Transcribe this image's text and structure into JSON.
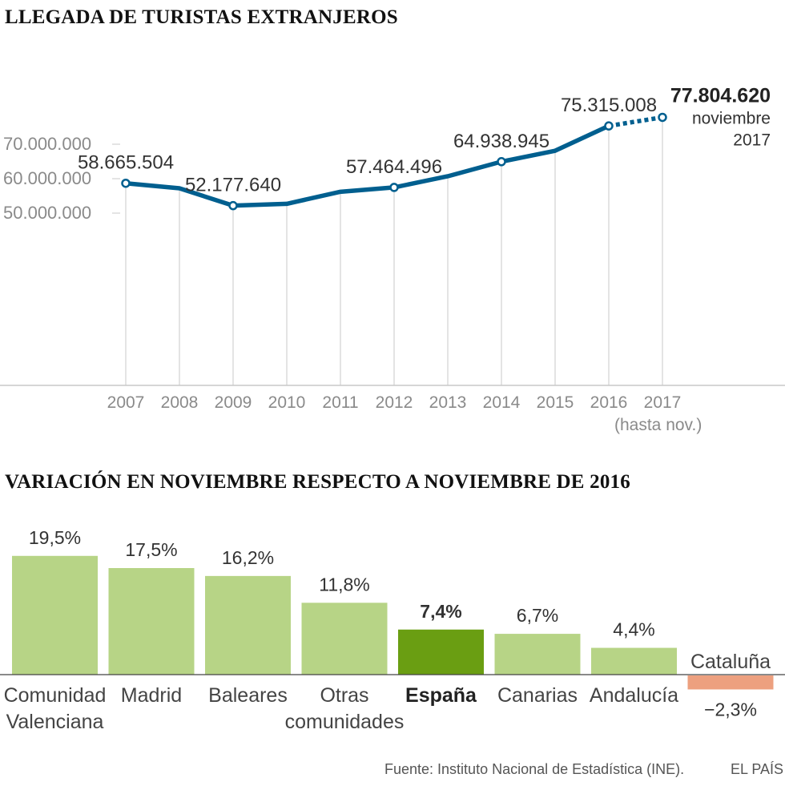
{
  "titles": {
    "line": "LLEGADA DE TURISTAS EXTRANJEROS",
    "bar": "VARIACIÓN EN NOVIEMBRE RESPECTO A NOVIEMBRE DE 2016"
  },
  "footer": {
    "source": "Fuente: Instituto Nacional de Estadística (INE).",
    "brand": "EL PAÍS"
  },
  "colors": {
    "line": "#005f8f",
    "bar_regular": "#b7d486",
    "bar_highlight": "#6a9e12",
    "bar_negative": "#eda07f",
    "grid": "#c8c8c8",
    "tick_text": "#8a8a8a",
    "label_text": "#333333"
  },
  "chart_data": [
    {
      "type": "line",
      "title": "LLEGADA DE TURISTAS EXTRANJEROS",
      "categories": [
        "2007",
        "2008",
        "2009",
        "2010",
        "2011",
        "2012",
        "2013",
        "2014",
        "2015",
        "2016",
        "2017"
      ],
      "x_sublabel": {
        "category": "2017",
        "text": "(hasta nov.)"
      },
      "values": [
        58665504,
        57200000,
        52177640,
        52700000,
        56200000,
        57464496,
        60700000,
        64938945,
        68100000,
        75315008,
        77804620
      ],
      "projected_from": "2016",
      "ylim": [
        0,
        80000000
      ],
      "y_ticks": [
        {
          "value": 70000000,
          "label": "70.000.000"
        },
        {
          "value": 60000000,
          "label": "60.000.000"
        },
        {
          "value": 50000000,
          "label": "50.000.000"
        }
      ],
      "value_labels": [
        {
          "category": "2007",
          "text": "58.665.504"
        },
        {
          "category": "2009",
          "text": "52.177.640"
        },
        {
          "category": "2012",
          "text": "57.464.496"
        },
        {
          "category": "2014",
          "text": "64.938.945"
        },
        {
          "category": "2016",
          "text": "75.315.008"
        }
      ],
      "highlight_label": {
        "category": "2017",
        "value_text": "77.804.620",
        "line1": "noviembre",
        "line2": "2017"
      },
      "markers": [
        "2007",
        "2009",
        "2012",
        "2014",
        "2016",
        "2017"
      ],
      "grid": "vertical"
    },
    {
      "type": "bar",
      "title": "VARIACIÓN EN NOVIEMBRE RESPECTO A NOVIEMBRE DE 2016",
      "unit": "%",
      "bars": [
        {
          "label": [
            "Comunidad",
            "Valenciana"
          ],
          "value": 19.5,
          "value_text": "19,5%",
          "style": "regular"
        },
        {
          "label": [
            "Madrid"
          ],
          "value": 17.5,
          "value_text": "17,5%",
          "style": "regular"
        },
        {
          "label": [
            "Baleares"
          ],
          "value": 16.2,
          "value_text": "16,2%",
          "style": "regular"
        },
        {
          "label": [
            "Otras",
            "comunidades"
          ],
          "value": 11.8,
          "value_text": "11,8%",
          "style": "regular"
        },
        {
          "label": [
            "España"
          ],
          "value": 7.4,
          "value_text": "7,4%",
          "style": "highlight"
        },
        {
          "label": [
            "Canarias"
          ],
          "value": 6.7,
          "value_text": "6,7%",
          "style": "regular"
        },
        {
          "label": [
            "Andalucía"
          ],
          "value": 4.4,
          "value_text": "4,4%",
          "style": "regular"
        },
        {
          "label": [
            "Cataluña"
          ],
          "value": -2.3,
          "value_text": "−2,3%",
          "style": "negative"
        }
      ]
    }
  ]
}
